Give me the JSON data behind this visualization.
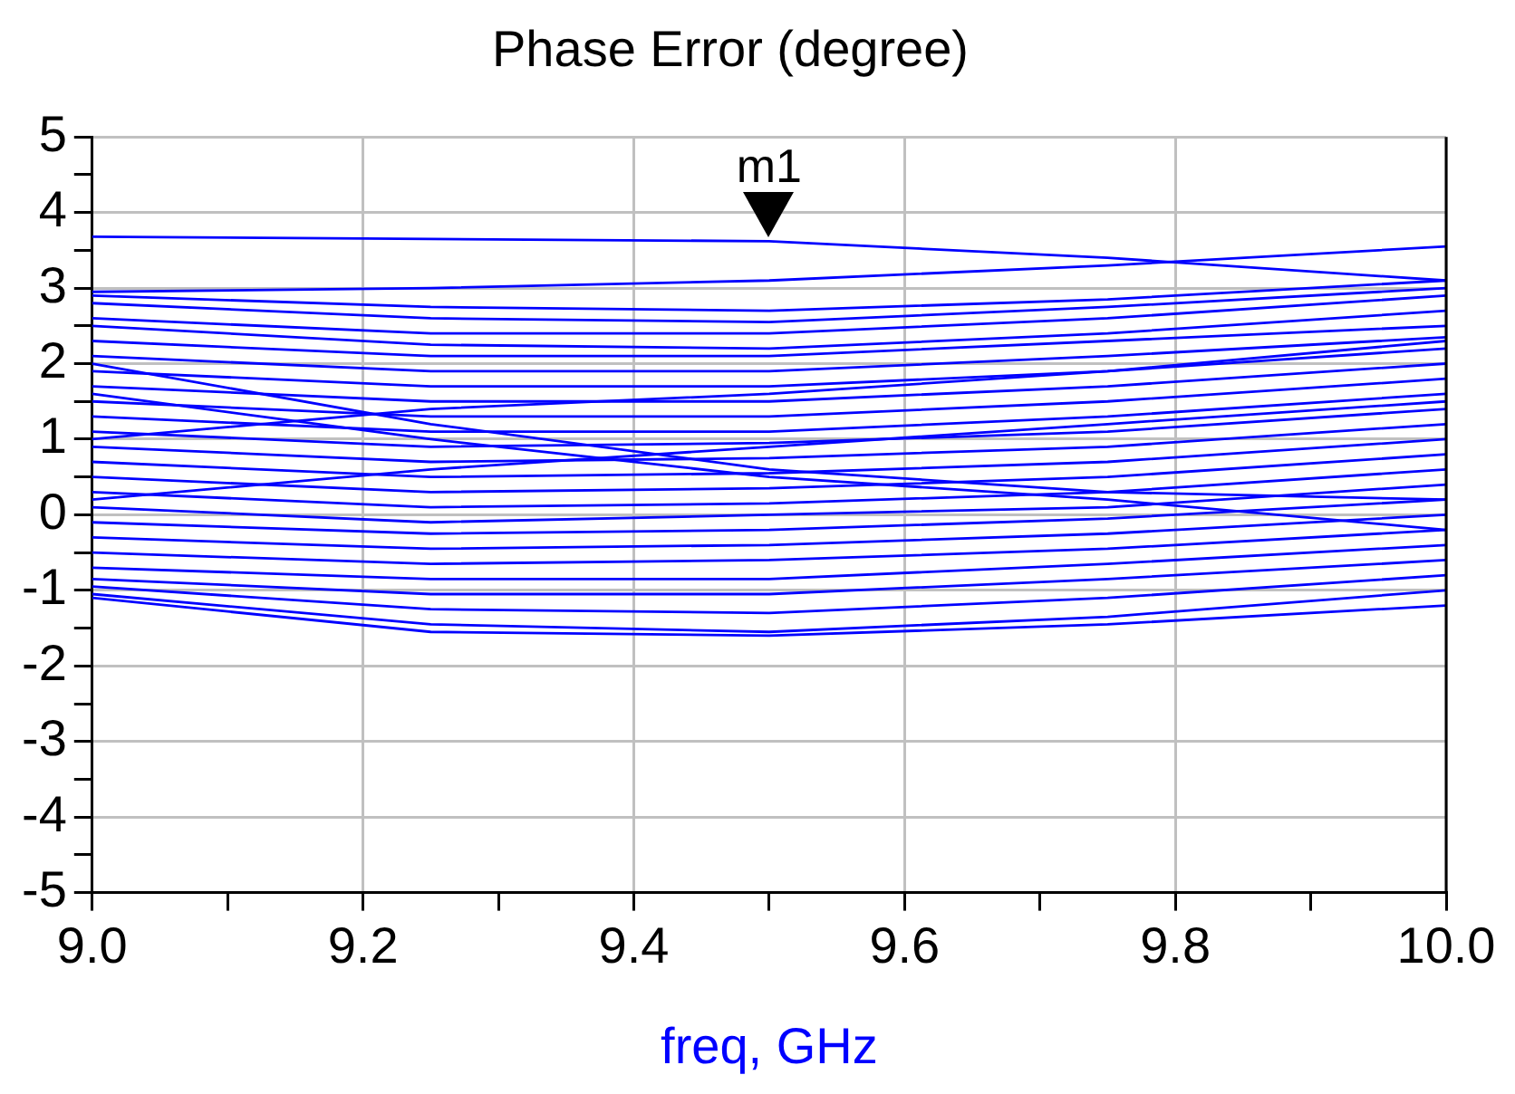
{
  "chart_data": {
    "type": "line",
    "title": "Phase Error (degree)",
    "xlabel": "freq, GHz",
    "x": [
      9.0,
      9.25,
      9.5,
      9.75,
      10.0
    ],
    "series": [
      {
        "color": "#0000ff",
        "values": [
          3.68,
          3.65,
          3.62,
          3.4,
          3.1
        ]
      },
      {
        "color": "#0000ff",
        "values": [
          2.95,
          3.0,
          3.1,
          3.3,
          3.55
        ]
      },
      {
        "color": "#0000ff",
        "values": [
          2.9,
          2.75,
          2.7,
          2.85,
          3.1
        ]
      },
      {
        "color": "#0000ff",
        "values": [
          2.8,
          2.6,
          2.55,
          2.75,
          3.0
        ]
      },
      {
        "color": "#0000ff",
        "values": [
          2.6,
          2.4,
          2.4,
          2.6,
          2.9
        ]
      },
      {
        "color": "#0000ff",
        "values": [
          2.5,
          2.25,
          2.2,
          2.4,
          2.7
        ]
      },
      {
        "color": "#0000ff",
        "values": [
          2.3,
          2.1,
          2.1,
          2.3,
          2.5
        ]
      },
      {
        "color": "#0000ff",
        "values": [
          2.1,
          1.9,
          1.9,
          2.1,
          2.35
        ]
      },
      {
        "color": "#0000ff",
        "values": [
          1.9,
          1.7,
          1.7,
          1.9,
          2.2
        ]
      },
      {
        "color": "#0000ff",
        "values": [
          1.7,
          1.5,
          1.5,
          1.7,
          2.0
        ]
      },
      {
        "color": "#0000ff",
        "values": [
          1.5,
          1.3,
          1.3,
          1.5,
          1.8
        ]
      },
      {
        "color": "#0000ff",
        "values": [
          1.3,
          1.1,
          1.1,
          1.3,
          1.6
        ]
      },
      {
        "color": "#0000ff",
        "values": [
          1.1,
          0.9,
          0.95,
          1.1,
          1.4
        ]
      },
      {
        "color": "#0000ff",
        "values": [
          0.9,
          0.7,
          0.75,
          0.9,
          1.2
        ]
      },
      {
        "color": "#0000ff",
        "values": [
          0.7,
          0.5,
          0.55,
          0.7,
          1.0
        ]
      },
      {
        "color": "#0000ff",
        "values": [
          0.5,
          0.3,
          0.35,
          0.5,
          0.8
        ]
      },
      {
        "color": "#0000ff",
        "values": [
          0.3,
          0.1,
          0.15,
          0.3,
          0.6
        ]
      },
      {
        "color": "#0000ff",
        "values": [
          0.1,
          -0.1,
          0.0,
          0.1,
          0.4
        ]
      },
      {
        "color": "#0000ff",
        "values": [
          -0.1,
          -0.25,
          -0.2,
          -0.05,
          0.2
        ]
      },
      {
        "color": "#0000ff",
        "values": [
          -0.3,
          -0.45,
          -0.4,
          -0.25,
          0.0
        ]
      },
      {
        "color": "#0000ff",
        "values": [
          -0.5,
          -0.65,
          -0.6,
          -0.45,
          -0.2
        ]
      },
      {
        "color": "#0000ff",
        "values": [
          -0.7,
          -0.85,
          -0.85,
          -0.65,
          -0.4
        ]
      },
      {
        "color": "#0000ff",
        "values": [
          -0.85,
          -1.05,
          -1.05,
          -0.85,
          -0.6
        ]
      },
      {
        "color": "#0000ff",
        "values": [
          -0.95,
          -1.25,
          -1.3,
          -1.1,
          -0.8
        ]
      },
      {
        "color": "#0000ff",
        "values": [
          -1.05,
          -1.45,
          -1.55,
          -1.35,
          -1.0
        ]
      },
      {
        "color": "#0000ff",
        "values": [
          -1.1,
          -1.55,
          -1.6,
          -1.45,
          -1.2
        ]
      },
      {
        "color": "#0000ff",
        "values": [
          1.0,
          1.4,
          1.6,
          1.9,
          2.3
        ]
      },
      {
        "color": "#0000ff",
        "values": [
          0.2,
          0.6,
          0.9,
          1.2,
          1.5
        ]
      },
      {
        "color": "#0000ff",
        "values": [
          2.0,
          1.2,
          0.6,
          0.3,
          0.2
        ]
      },
      {
        "color": "#0000ff",
        "values": [
          1.6,
          1.0,
          0.5,
          0.2,
          -0.2
        ]
      }
    ],
    "xlim": [
      9.0,
      10.0
    ],
    "xticks": [
      {
        "value": 9.0,
        "label": "9.0"
      },
      {
        "value": 9.1,
        "label": null
      },
      {
        "value": 9.2,
        "label": "9.2"
      },
      {
        "value": 9.3,
        "label": null
      },
      {
        "value": 9.4,
        "label": "9.4"
      },
      {
        "value": 9.5,
        "label": null
      },
      {
        "value": 9.6,
        "label": "9.6"
      },
      {
        "value": 9.7,
        "label": null
      },
      {
        "value": 9.8,
        "label": "9.8"
      },
      {
        "value": 9.9,
        "label": null
      },
      {
        "value": 10.0,
        "label": "10.0"
      }
    ],
    "ylim": [
      -5,
      5
    ],
    "yticks": [
      -5,
      {
        "value": -4.5,
        "label": null
      },
      -4,
      {
        "value": -3.5,
        "label": null
      },
      -3,
      {
        "value": -2.5,
        "label": null
      },
      -2,
      {
        "value": -1.5,
        "label": null
      },
      -1,
      {
        "value": -0.5,
        "label": null
      },
      0,
      {
        "value": 0.5,
        "label": null
      },
      1,
      {
        "value": 1.5,
        "label": null
      },
      2,
      {
        "value": 2.5,
        "label": null
      },
      3,
      {
        "value": 3.5,
        "label": null
      },
      4,
      {
        "value": 4.5,
        "label": null
      },
      5
    ],
    "grid": true,
    "legend": false,
    "marker": "none",
    "line_style": "solid",
    "annotations": [
      {
        "text": "m1",
        "x": 9.5,
        "y": 3.62
      }
    ]
  }
}
